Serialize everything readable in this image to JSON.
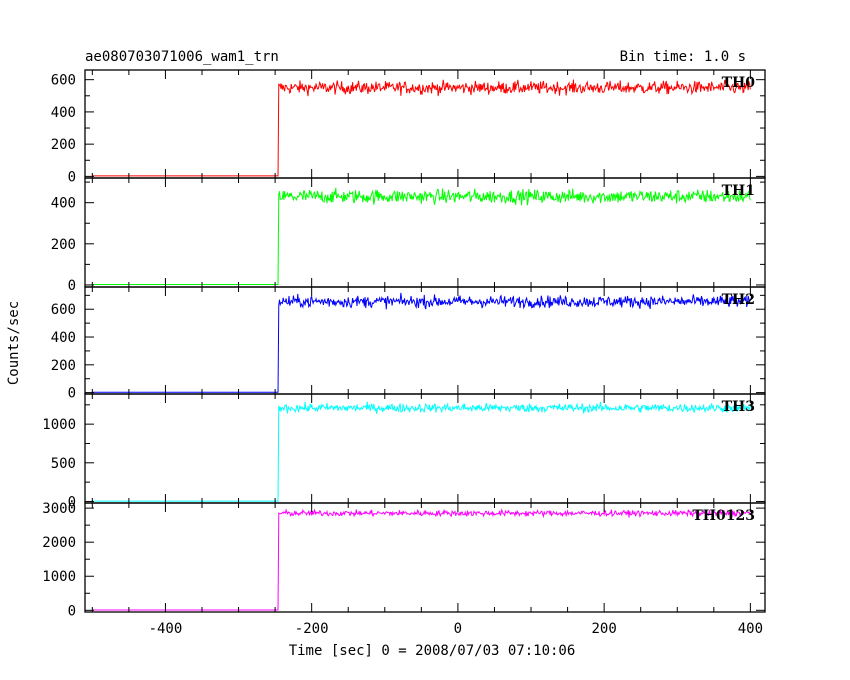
{
  "header": {
    "left_title": "ae080703071006_wam1_trn",
    "right_title": "Bin time: 1.0 s"
  },
  "chart_data": {
    "type": "line",
    "title": "ae080703071006_wam1_trn",
    "bin_time": "Bin time: 1.0 s",
    "xlabel": "Time [sec] 0 = 2008/07/03 07:10:06",
    "ylabel": "Counts/sec",
    "xlim": [
      -510,
      420
    ],
    "x_ticks": [
      -400,
      -200,
      0,
      200,
      400
    ],
    "trigger_time": -245,
    "series_start": -500,
    "series_end": 400,
    "panels": [
      {
        "name": "TH0",
        "color": "#ff0000",
        "ylim": [
          -10,
          660
        ],
        "y_ticks": [
          0,
          200,
          400,
          600
        ],
        "pre_level": 3,
        "post_level": 550,
        "noise": 28
      },
      {
        "name": "TH1",
        "color": "#00ff00",
        "ylim": [
          -10,
          520
        ],
        "y_ticks": [
          0,
          200,
          400
        ],
        "pre_level": 2,
        "post_level": 430,
        "noise": 24
      },
      {
        "name": "TH2",
        "color": "#0000ff",
        "ylim": [
          -10,
          760
        ],
        "y_ticks": [
          0,
          200,
          400,
          600
        ],
        "pre_level": 3,
        "post_level": 655,
        "noise": 30
      },
      {
        "name": "TH3",
        "color": "#00ffff",
        "ylim": [
          -20,
          1390
        ],
        "y_ticks": [
          0,
          500,
          1000
        ],
        "pre_level": 5,
        "post_level": 1210,
        "noise": 40
      },
      {
        "name": "TH0123",
        "color": "#ff00ff",
        "ylim": [
          -50,
          3150
        ],
        "y_ticks": [
          0,
          1000,
          2000,
          3000
        ],
        "pre_level": 8,
        "post_level": 2850,
        "noise": 60
      }
    ]
  }
}
